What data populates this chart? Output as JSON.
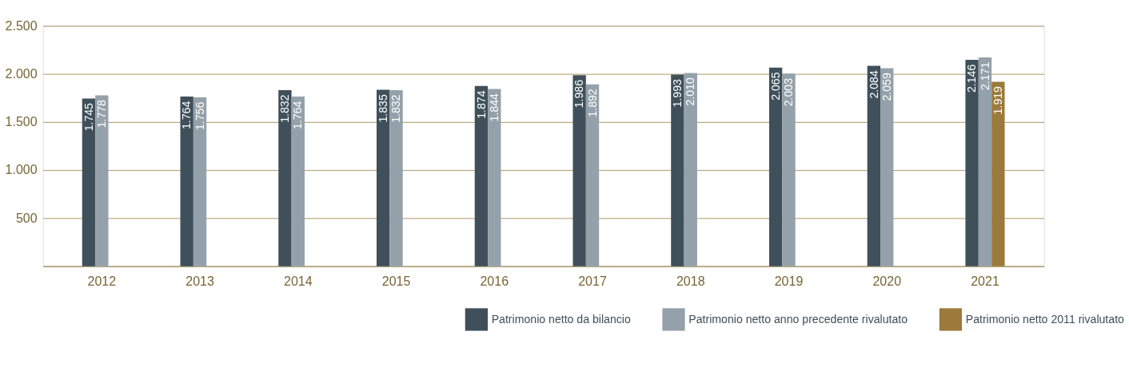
{
  "chart_data": {
    "type": "bar",
    "categories": [
      "2012",
      "2013",
      "2014",
      "2015",
      "2016",
      "2017",
      "2018",
      "2019",
      "2020",
      "2021"
    ],
    "series": [
      {
        "name": "Patrimonio netto da bilancio",
        "color": "#3f505b",
        "values": [
          1745,
          1764,
          1832,
          1835,
          1874,
          1986,
          1993,
          2065,
          2084,
          2146
        ],
        "value_labels": [
          "1.745",
          "1.764",
          "1.832",
          "1.835",
          "1.874",
          "1.986",
          "1.993",
          "2.065",
          "2.084",
          "2.146"
        ]
      },
      {
        "name": "Patrimonio netto anno precedente rivalutato",
        "color": "#95a1aa",
        "values": [
          1778,
          1756,
          1764,
          1832,
          1844,
          1892,
          2010,
          2003,
          2059,
          2171
        ],
        "value_labels": [
          "1.778",
          "1.756",
          "1.764",
          "1.832",
          "1.844",
          "1.892",
          "2.010",
          "2.003",
          "2.059",
          "2.171"
        ]
      },
      {
        "name": "Patrimonio netto 2011 rivalutato",
        "color": "#9c7a3c",
        "values": [
          null,
          null,
          null,
          null,
          null,
          null,
          null,
          null,
          null,
          1919
        ],
        "value_labels": [
          null,
          null,
          null,
          null,
          null,
          null,
          null,
          null,
          null,
          "1.919"
        ]
      }
    ],
    "ylim": [
      0,
      2500
    ],
    "yticks": [
      {
        "value": 0,
        "label": null
      },
      500,
      {
        "value": 1000,
        "label": "1.000"
      },
      {
        "value": 1500,
        "label": "1.500"
      },
      {
        "value": 2000,
        "label": "2.000"
      },
      {
        "value": 2500,
        "label": "2.500"
      }
    ],
    "grid": "y",
    "legend": "bottom right"
  }
}
